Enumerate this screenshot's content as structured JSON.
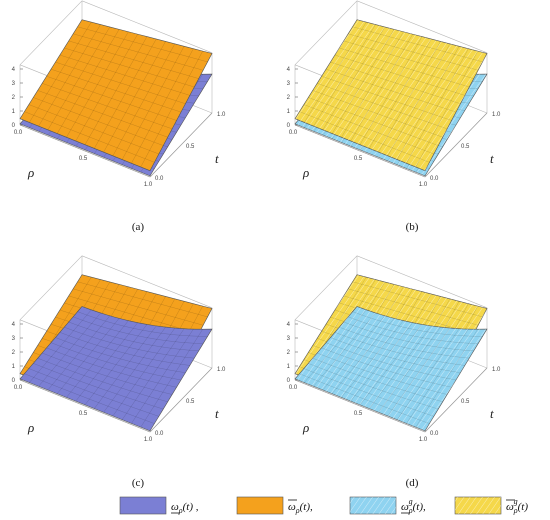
{
  "chart_data": [
    {
      "type": "surface3d",
      "panel_label": "(a)",
      "x_label": "ρ",
      "y_label": "t",
      "ticks": {
        "z": [
          "0",
          "1",
          "2",
          "3",
          "4"
        ],
        "rho": [
          "0.0",
          "0.5",
          "1.0"
        ],
        "t": [
          "0.0",
          "0.5",
          "1.0"
        ]
      },
      "surfaces": [
        "lower_bar",
        "upper_bar"
      ],
      "top": "upper_bar",
      "zlim": [
        0,
        4
      ]
    },
    {
      "type": "surface3d",
      "panel_label": "(b)",
      "x_label": "ρ",
      "y_label": "t",
      "ticks": {
        "z": [
          "0",
          "1",
          "2",
          "3",
          "4"
        ],
        "rho": [
          "0.0",
          "0.5",
          "1.0"
        ],
        "t": [
          "0.0",
          "0.5",
          "1.0"
        ]
      },
      "surfaces": [
        "lower_g",
        "upper_g"
      ],
      "top": "upper_g",
      "zlim": [
        0,
        4
      ]
    },
    {
      "type": "surface3d",
      "panel_label": "(c)",
      "x_label": "ρ",
      "y_label": "t",
      "ticks": {
        "z": [
          "0",
          "1",
          "2",
          "3",
          "4"
        ],
        "rho": [
          "0.0",
          "0.5",
          "1.0"
        ],
        "t": [
          "0.0",
          "0.5",
          "1.0"
        ]
      },
      "surfaces": [
        "lower_bar",
        "upper_bar"
      ],
      "top": "lower_bar",
      "zlim": [
        0,
        4
      ]
    },
    {
      "type": "surface3d",
      "panel_label": "(d)",
      "x_label": "ρ",
      "y_label": "t",
      "ticks": {
        "z": [
          "0",
          "1",
          "2",
          "3",
          "4"
        ],
        "rho": [
          "0.0",
          "0.5",
          "1.0"
        ],
        "t": [
          "0.0",
          "0.5",
          "1.0"
        ]
      },
      "surfaces": [
        "lower_g",
        "upper_g"
      ],
      "top": "lower_g",
      "zlim": [
        0,
        4
      ]
    }
  ],
  "legend": [
    {
      "key": "lower_bar",
      "symbol": "ω",
      "accent": "under",
      "sub": "ρ",
      "sup": "",
      "suffix": "(t) ,",
      "color": "#7b7fd4",
      "hatch": false
    },
    {
      "key": "upper_bar",
      "symbol": "ω",
      "accent": "over",
      "sub": "ρ",
      "sup": "",
      "suffix": "(t),",
      "color": "#f4a11d",
      "hatch": false
    },
    {
      "key": "lower_g",
      "symbol": "ω",
      "accent": "under",
      "sub": "ρ",
      "sup": "g",
      "suffix": "(t),",
      "color": "#8fd3f0",
      "hatch": true
    },
    {
      "key": "upper_g",
      "symbol": "ω",
      "accent": "over",
      "sub": "ρ",
      "sup": "g",
      "suffix": "(t)",
      "color": "#f5d84a",
      "hatch": true
    }
  ]
}
